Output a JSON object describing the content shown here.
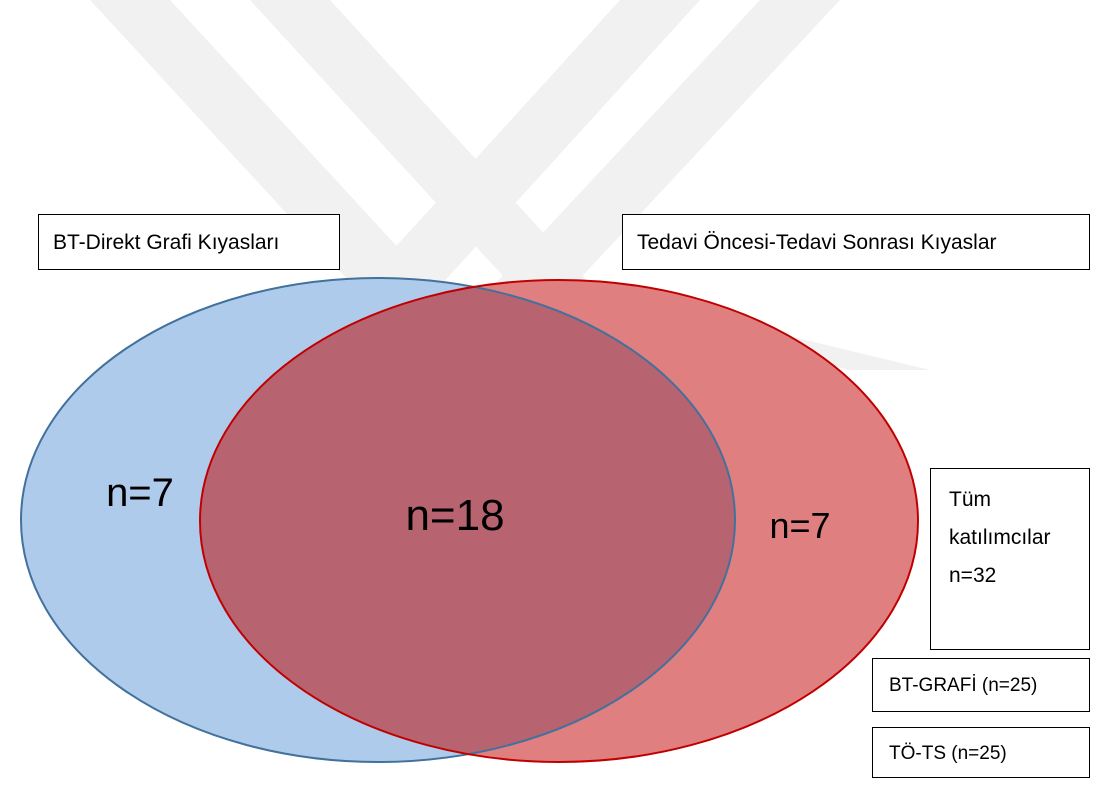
{
  "sets": {
    "left": "BT-Direkt Grafi Kıyasları",
    "right": "Tedavi Öncesi-Tedavi Sonrası Kıyaslar"
  },
  "regions": {
    "left_only": "n=7",
    "both": "n=18",
    "right_only": "n=7"
  },
  "total_box": {
    "lines": [
      "Tüm",
      "katılımcılar",
      "n=32"
    ]
  },
  "legend": [
    "BT-GRAFİ (n=25)",
    "TÖ-TS (n=25)"
  ]
}
